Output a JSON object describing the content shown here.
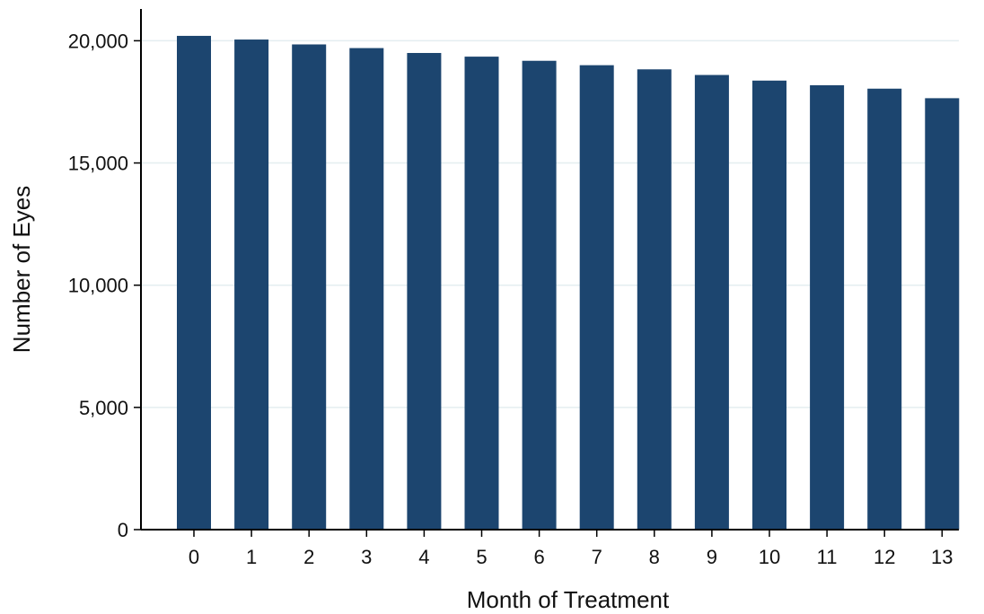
{
  "chart_data": {
    "type": "bar",
    "title": "",
    "xlabel": "Month of Treatment",
    "ylabel": "Number of Eyes",
    "categories": [
      "0",
      "1",
      "2",
      "3",
      "4",
      "5",
      "6",
      "7",
      "8",
      "9",
      "10",
      "11",
      "12",
      "13"
    ],
    "values": [
      20200,
      20050,
      19850,
      19700,
      19500,
      19350,
      19180,
      19000,
      18830,
      18600,
      18370,
      18180,
      18040,
      17650
    ],
    "ylim": [
      0,
      21300
    ],
    "yticks": [
      0,
      5000,
      10000,
      15000,
      20000
    ],
    "ytick_labels": [
      "0",
      "5,000",
      "10,000",
      "15,000",
      "20,000"
    ],
    "grid": true,
    "bar_color": "#1c456f",
    "grid_color": "#e4eef0",
    "axis_color": "#000000"
  }
}
